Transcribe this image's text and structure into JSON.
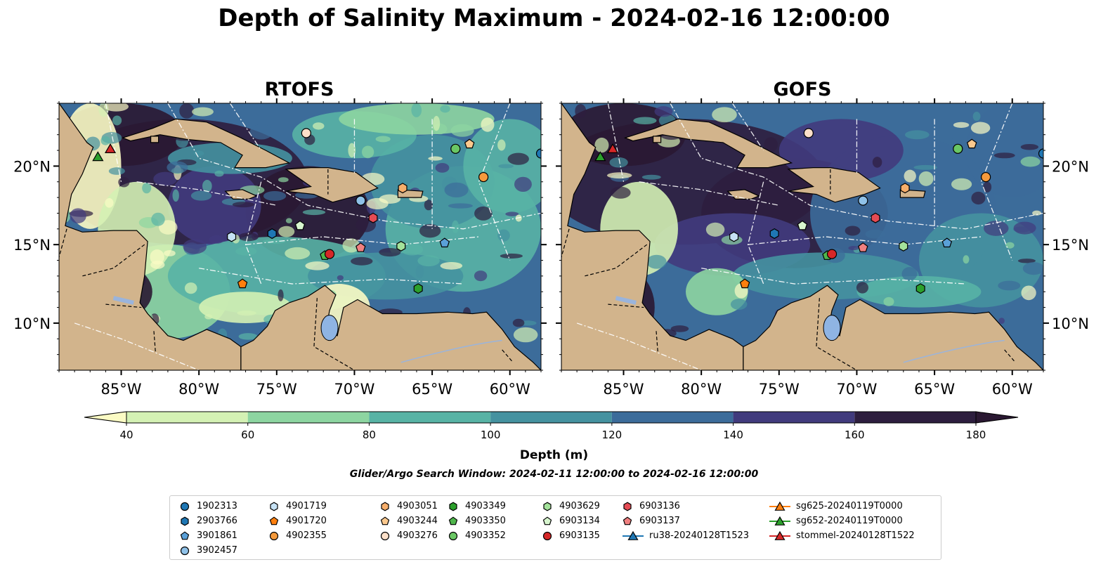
{
  "title": "Depth of Salinity Maximum - 2024-02-16 12:00:00",
  "panels": [
    {
      "name": "RTOFS"
    },
    {
      "name": "GOFS"
    }
  ],
  "colorbar": {
    "label": "Depth (m)",
    "ticks": [
      40,
      60,
      80,
      100,
      120,
      140,
      160,
      180
    ],
    "colors": [
      "#fbfbc4",
      "#d4f1b4",
      "#8dd5a1",
      "#58b3a5",
      "#4592a0",
      "#3c6c9a",
      "#413b7d",
      "#2d1e3e",
      "#2a1832"
    ],
    "extend": "both"
  },
  "search_window": "Glider/Argo Search Window: 2024-02-11 12:00:00 to 2024-02-16 12:00:00",
  "chart_data": {
    "type": "heatmap",
    "title": "Depth of Salinity Maximum - 2024-02-16 12:00:00",
    "value_label": "Depth (m)",
    "levels": [
      40,
      60,
      80,
      100,
      120,
      140,
      160,
      180
    ],
    "x_ticks": [
      "85°W",
      "80°W",
      "75°W",
      "70°W",
      "65°W",
      "60°W"
    ],
    "y_ticks": [
      "10°N",
      "15°N",
      "20°N"
    ],
    "x_range": [
      -89,
      -58
    ],
    "y_range": [
      7,
      24
    ],
    "observations": [
      {
        "id": "1902313",
        "lon": -58.0,
        "lat": 20.8,
        "marker": "circle",
        "color": "#1f77b4"
      },
      {
        "id": "3902457",
        "lon": -69.6,
        "lat": 17.8,
        "marker": "circle",
        "color": "#8fc1e8"
      },
      {
        "id": "2903766",
        "lon": -75.3,
        "lat": 15.7,
        "marker": "hexagon",
        "color": "#1f77b4"
      },
      {
        "id": "3901861",
        "lon": -64.2,
        "lat": 15.1,
        "marker": "pentagon",
        "color": "#5aa0d8"
      },
      {
        "id": "4901719",
        "lon": -77.9,
        "lat": 15.5,
        "marker": "hexagon",
        "color": "#c6e2f5"
      },
      {
        "id": "4901720",
        "lon": -77.2,
        "lat": 12.5,
        "marker": "pentagon",
        "color": "#ff7f0e"
      },
      {
        "id": "4902355",
        "lon": -61.7,
        "lat": 19.3,
        "marker": "circle",
        "color": "#f59a3c"
      },
      {
        "id": "4903051",
        "lon": -66.9,
        "lat": 18.6,
        "marker": "hexagon",
        "color": "#f6ae6b"
      },
      {
        "id": "4903244",
        "lon": -62.6,
        "lat": 21.4,
        "marker": "pentagon",
        "color": "#fcc98e"
      },
      {
        "id": "4903276",
        "lon": -73.1,
        "lat": 22.1,
        "marker": "circle",
        "color": "#fde0c9"
      },
      {
        "id": "4903349",
        "lon": -65.9,
        "lat": 12.2,
        "marker": "hexagon",
        "color": "#2ca02c"
      },
      {
        "id": "4903350",
        "lon": -71.9,
        "lat": 14.3,
        "marker": "pentagon",
        "color": "#4fb64c"
      },
      {
        "id": "4903352",
        "lon": -63.5,
        "lat": 21.1,
        "marker": "circle",
        "color": "#6ac764"
      },
      {
        "id": "4903629",
        "lon": -67.0,
        "lat": 14.9,
        "marker": "hexagon",
        "color": "#a3e29a"
      },
      {
        "id": "6903134",
        "lon": -73.5,
        "lat": 16.2,
        "marker": "pentagon",
        "color": "#d8f6cf"
      },
      {
        "id": "6903135",
        "lon": -71.6,
        "lat": 14.4,
        "marker": "circle",
        "color": "#d62728"
      },
      {
        "id": "6903136",
        "lon": -68.8,
        "lat": 16.7,
        "marker": "hexagon",
        "color": "#e54b54"
      },
      {
        "id": "6903137",
        "lon": -69.6,
        "lat": 14.8,
        "marker": "pentagon",
        "color": "#f08080"
      },
      {
        "id": "stommel-20240128T1522",
        "lon": -85.7,
        "lat": 21.1,
        "marker": "triangle",
        "color": "#d62728"
      },
      {
        "id": "sg652-20240119T0000",
        "lon": -86.5,
        "lat": 20.6,
        "marker": "triangle",
        "color": "#2ca02c"
      }
    ]
  },
  "legend": [
    {
      "label": "1902313",
      "marker": "circle",
      "color": "#1f77b4"
    },
    {
      "label": "2903766",
      "marker": "hexagon",
      "color": "#1f77b4"
    },
    {
      "label": "3901861",
      "marker": "pentagon",
      "color": "#5aa0d8"
    },
    {
      "label": "3902457",
      "marker": "circle",
      "color": "#8fc1e8"
    },
    {
      "label": "4901719",
      "marker": "hexagon",
      "color": "#c6e2f5"
    },
    {
      "label": "4901720",
      "marker": "pentagon",
      "color": "#ff7f0e"
    },
    {
      "label": "4902355",
      "marker": "circle",
      "color": "#f59a3c"
    },
    {
      "label": "4903051",
      "marker": "hexagon",
      "color": "#f6ae6b"
    },
    {
      "label": "4903244",
      "marker": "pentagon",
      "color": "#fcc98e"
    },
    {
      "label": "4903276",
      "marker": "circle",
      "color": "#fde0c9"
    },
    {
      "label": "4903349",
      "marker": "hexagon",
      "color": "#2ca02c"
    },
    {
      "label": "4903350",
      "marker": "pentagon",
      "color": "#4fb64c"
    },
    {
      "label": "4903352",
      "marker": "circle",
      "color": "#6ac764"
    },
    {
      "label": "4903629",
      "marker": "hexagon",
      "color": "#a3e29a"
    },
    {
      "label": "6903134",
      "marker": "pentagon",
      "color": "#d8f6cf"
    },
    {
      "label": "6903135",
      "marker": "circle",
      "color": "#d62728"
    },
    {
      "label": "6903136",
      "marker": "hexagon",
      "color": "#e54b54"
    },
    {
      "label": "6903137",
      "marker": "pentagon",
      "color": "#f08080"
    },
    {
      "label": "ru38-20240128T1523",
      "marker": "triangle-line",
      "color": "#1f77b4"
    },
    {
      "label": "sg625-20240119T0000",
      "marker": "triangle-line",
      "color": "#ff7f0e"
    },
    {
      "label": "sg652-20240119T0000",
      "marker": "triangle-line",
      "color": "#2ca02c"
    },
    {
      "label": "stommel-20240128T1522",
      "marker": "triangle-line",
      "color": "#d62728"
    }
  ]
}
